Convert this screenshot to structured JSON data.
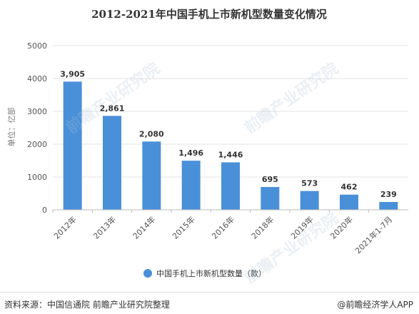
{
  "chart_data": {
    "type": "bar",
    "title": "2012-2021年中国手机上市新机型数量变化情况",
    "ylabel": "单位：亿部",
    "xlabel": "",
    "categories": [
      "2012年",
      "2013年",
      "2014年",
      "2015年",
      "2016年",
      "2018年",
      "2019年",
      "2020年",
      "2021年1-7月"
    ],
    "series": [
      {
        "name": "中国手机上市新机型数量（款）",
        "values": [
          3905,
          2861,
          2080,
          1496,
          1446,
          695,
          573,
          462,
          239
        ]
      }
    ],
    "data_labels": [
      "3,905",
      "2,861",
      "2,080",
      "1,496",
      "1,446",
      "695",
      "573",
      "462",
      "239"
    ],
    "ylim": [
      0,
      5000
    ],
    "yticks": [
      0,
      1000,
      2000,
      3000,
      4000,
      5000
    ],
    "grid": true,
    "legend_position": "bottom",
    "bar_color": "#4a90d9"
  },
  "footer": {
    "source": "资料来源：中国信通院 前瞻产业研究院整理",
    "brand": "@前瞻经济学人APP"
  },
  "watermark": "前瞻产业研究院"
}
